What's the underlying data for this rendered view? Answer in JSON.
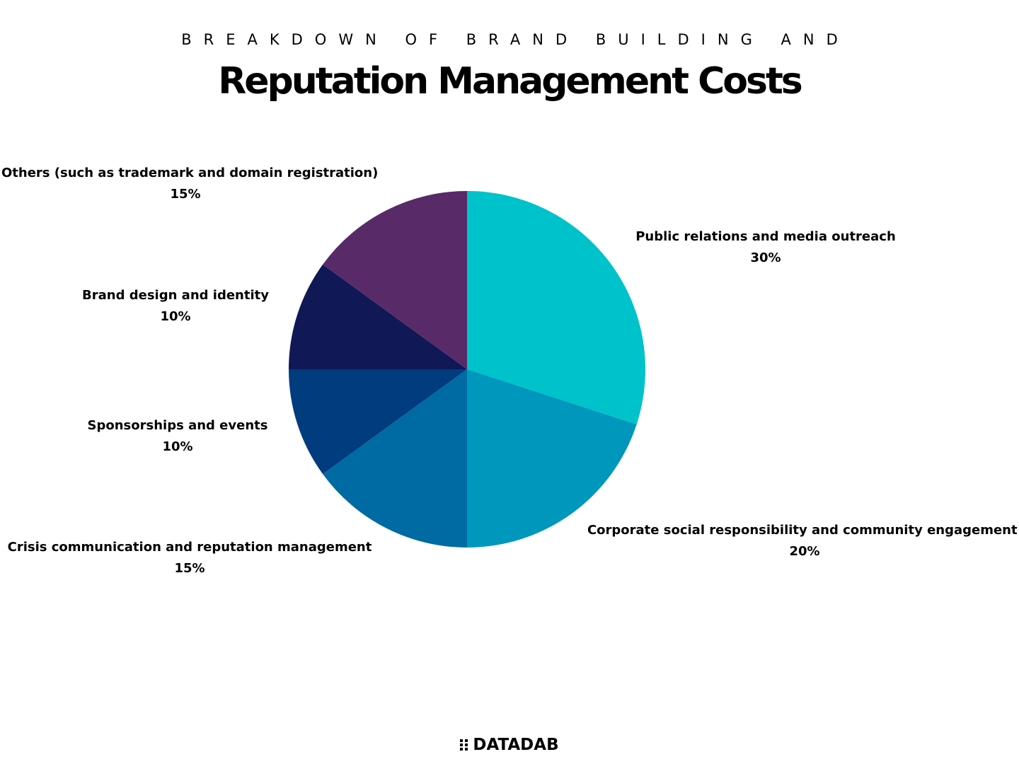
{
  "header": {
    "subtitle": "BREAKDOWN OF BRAND BUILDING AND",
    "title": "Reputation Management  Costs"
  },
  "chart_data": {
    "type": "pie",
    "slices": [
      {
        "label": "Public relations and media outreach",
        "value": 30,
        "value_label": "30%",
        "color": "#00c2cb"
      },
      {
        "label": "Corporate social responsibility and community engagement",
        "value": 20,
        "value_label": "20%",
        "color": "#0097bd"
      },
      {
        "label": "Crisis communication and reputation management",
        "value": 15,
        "value_label": "15%",
        "color": "#006aa2"
      },
      {
        "label": "Sponsorships and events",
        "value": 10,
        "value_label": "10%",
        "color": "#003c7e"
      },
      {
        "label": "Brand design and identity",
        "value": 10,
        "value_label": "10%",
        "color": "#101856"
      },
      {
        "label": "Others (such as trademark and domain registration)",
        "value": 15,
        "value_label": "15%",
        "color": "#582a68"
      }
    ],
    "start_angle": "12 o'clock",
    "direction": "clockwise",
    "legend": "none"
  },
  "footer": {
    "brand_name": "DATADAB"
  }
}
